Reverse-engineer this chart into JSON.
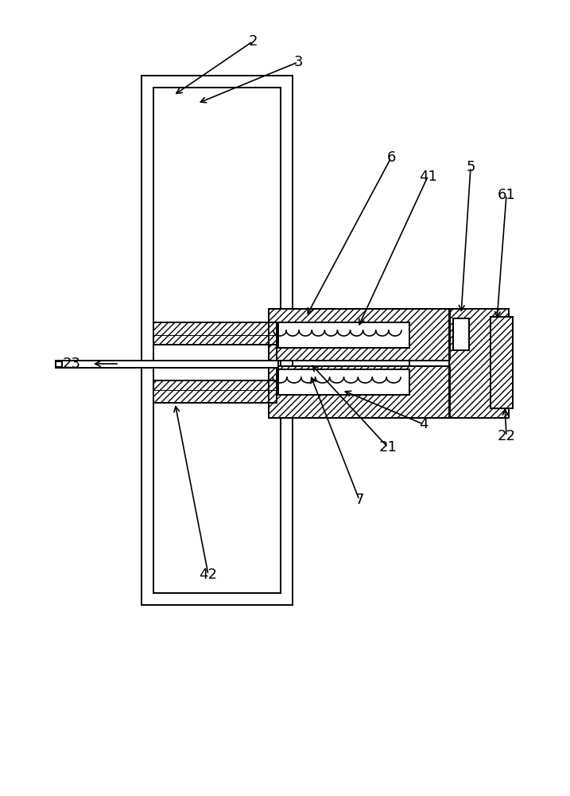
{
  "bg_color": "#ffffff",
  "figsize": [
    7.17,
    10.0
  ],
  "dpi": 100,
  "lw": 1.4
}
